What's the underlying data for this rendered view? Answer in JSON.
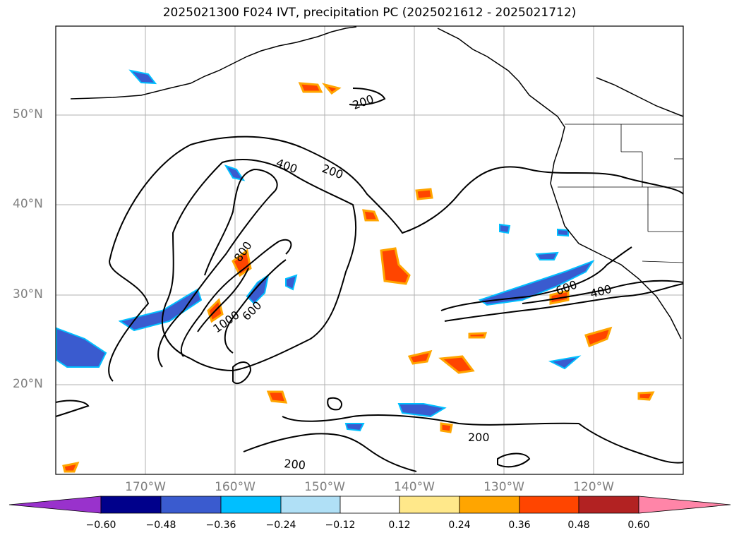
{
  "title": "2025021300 F024 IVT, precipitation PC (2025021612 - 2025021712)",
  "lat_labels": [
    "50°N",
    "40°N",
    "30°N",
    "20°N"
  ],
  "lon_labels": [
    "170°W",
    "160°W",
    "150°W",
    "140°W",
    "130°W",
    "120°W"
  ],
  "contour_labels": [
    "200",
    "400",
    "200",
    "800",
    "1000",
    "600",
    "600",
    "400",
    "200",
    "200"
  ],
  "colorbar": {
    "ticks": [
      "−0.60",
      "−0.48",
      "−0.36",
      "−0.24",
      "−0.12",
      "0.12",
      "0.24",
      "0.36",
      "0.48",
      "0.60"
    ],
    "colors": [
      "#9932cc",
      "#00008b",
      "#3a5bcf",
      "#00bfff",
      "#b0e0f6",
      "#ffffff",
      "#ffe88a",
      "#ffa500",
      "#ff4500",
      "#b22222",
      "#ff85a8"
    ]
  }
}
